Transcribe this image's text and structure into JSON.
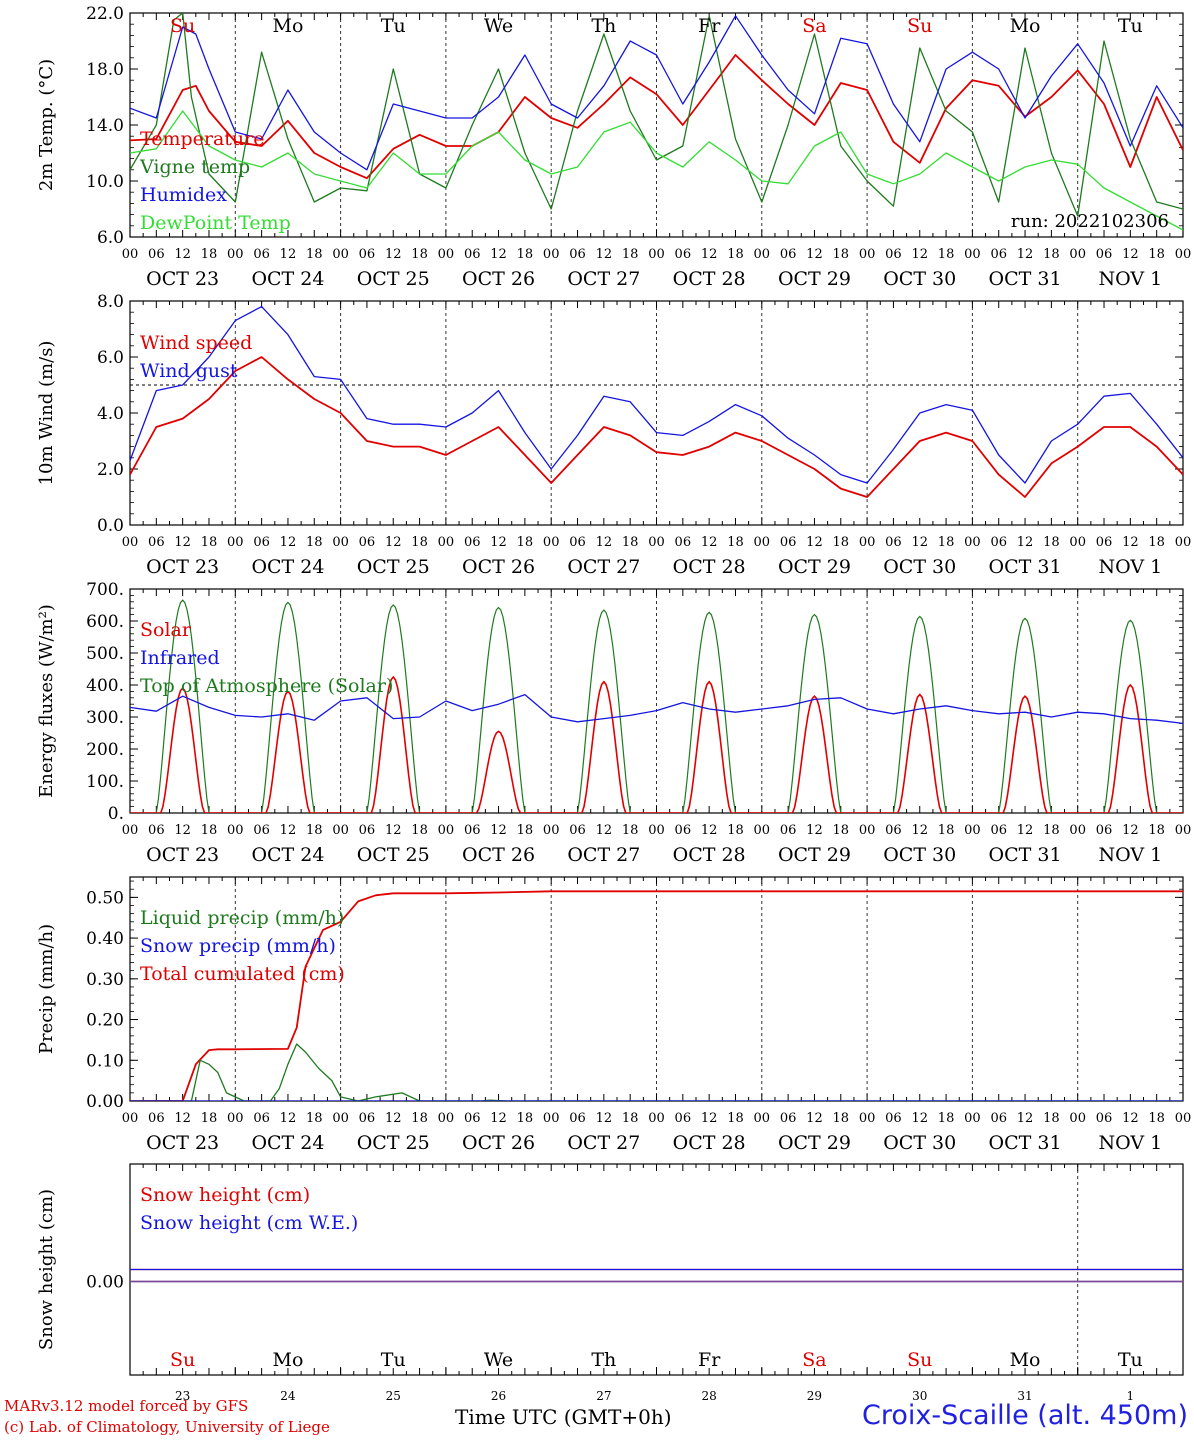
{
  "footer": {
    "model": "MARv3.12 model forced by GFS",
    "lab": "(c) Lab. of Climatology, University of Liege",
    "xlabel": "Time UTC (GMT+0h)",
    "station": "Croix-Scaille (alt. 450m)"
  },
  "colors": {
    "red": "#e00000",
    "dgreen": "#1f7a1f",
    "blue": "#1515e0",
    "lgreen": "#33dd33",
    "purple": "#7a4a9a"
  },
  "days": [
    "Su",
    "Mo",
    "Tu",
    "We",
    "Th",
    "Fr",
    "Sa",
    "Su",
    "Mo",
    "Tu"
  ],
  "day_colors": [
    "#e00000",
    "#000",
    "#000",
    "#000",
    "#000",
    "#000",
    "#e00000",
    "#e00000",
    "#000",
    "#000"
  ],
  "date_labels": [
    "OCT 23",
    "OCT 24",
    "OCT 25",
    "OCT 26",
    "OCT 27",
    "OCT 28",
    "OCT 29",
    "OCT 30",
    "OCT 31",
    "NOV  1"
  ],
  "day_numbers": [
    "23",
    "24",
    "25",
    "26",
    "27",
    "28",
    "29",
    "30",
    "31",
    "1"
  ],
  "hour_labels": [
    "00",
    "06",
    "12",
    "18"
  ],
  "chart_data": [
    {
      "type": "line",
      "name": "temperature",
      "ylabel": "2m Temp. (°C)",
      "ylim": [
        6,
        22
      ],
      "yticks": [
        "6.0",
        "10.0",
        "14.0",
        "18.0",
        "22.0"
      ],
      "annotation": "run: 2022102306",
      "x_unit": "hours from 2022-10-23 00 UTC",
      "legend": [
        {
          "label": "Temperature",
          "color": "#e00000"
        },
        {
          "label": "Vigne temp",
          "color": "#1f7a1f"
        },
        {
          "label": "Humidex",
          "color": "#1515e0"
        },
        {
          "label": "DewPoint Temp",
          "color": "#33dd33"
        }
      ],
      "series": [
        {
          "name": "Temperature",
          "color": "#e00000",
          "x": [
            0,
            6,
            12,
            15,
            18,
            24,
            30,
            36,
            42,
            48,
            54,
            60,
            66,
            72,
            78,
            84,
            90,
            96,
            102,
            108,
            114,
            120,
            126,
            132,
            138,
            144,
            150,
            156,
            162,
            168,
            174,
            180,
            186,
            192,
            198,
            204,
            210,
            216,
            222,
            228,
            234,
            240
          ],
          "y": [
            12.9,
            13.0,
            16.5,
            16.8,
            15.0,
            12.8,
            12.5,
            14.3,
            12.0,
            11.0,
            10.2,
            12.3,
            13.3,
            12.5,
            12.5,
            13.5,
            16.0,
            14.5,
            13.8,
            15.5,
            17.4,
            16.2,
            14.0,
            16.5,
            19.0,
            17.2,
            15.5,
            14.0,
            17.0,
            16.5,
            12.8,
            11.3,
            15.2,
            17.2,
            16.8,
            14.6,
            16.0,
            17.9,
            15.5,
            11.0,
            16.0,
            12.2
          ]
        },
        {
          "name": "Vigne temp",
          "color": "#1f7a1f",
          "x": [
            0,
            6,
            10,
            12,
            14,
            18,
            24,
            30,
            36,
            42,
            48,
            54,
            60,
            66,
            72,
            78,
            84,
            90,
            96,
            102,
            108,
            114,
            120,
            126,
            132,
            138,
            144,
            150,
            156,
            162,
            168,
            174,
            180,
            186,
            192,
            198,
            204,
            210,
            216,
            222,
            228,
            234,
            240
          ],
          "y": [
            10.8,
            14.0,
            21.5,
            22.0,
            16.0,
            10.5,
            8.5,
            19.2,
            13.0,
            8.5,
            9.5,
            9.3,
            18.0,
            10.5,
            9.5,
            14.0,
            18.0,
            12.0,
            8.0,
            15.0,
            20.5,
            15.0,
            11.5,
            12.5,
            21.8,
            13.0,
            8.5,
            14.0,
            20.5,
            12.5,
            10.0,
            8.2,
            19.5,
            15.0,
            13.5,
            8.5,
            19.5,
            12.0,
            7.5,
            20.0,
            13.0,
            8.5,
            8.0
          ]
        },
        {
          "name": "Humidex",
          "color": "#1515e0",
          "x": [
            0,
            6,
            12,
            15,
            18,
            24,
            30,
            36,
            42,
            48,
            54,
            60,
            66,
            72,
            78,
            84,
            90,
            96,
            102,
            108,
            114,
            120,
            126,
            132,
            138,
            144,
            150,
            156,
            162,
            168,
            174,
            180,
            186,
            192,
            198,
            204,
            210,
            216,
            222,
            228,
            234,
            240
          ],
          "y": [
            15.2,
            14.5,
            21.0,
            20.5,
            18.0,
            13.5,
            13.0,
            16.5,
            13.5,
            12.0,
            10.8,
            15.5,
            15.0,
            14.5,
            14.5,
            16.0,
            19.0,
            15.5,
            14.5,
            16.8,
            20.0,
            19.0,
            15.5,
            18.5,
            21.8,
            19.0,
            16.5,
            14.8,
            20.2,
            19.8,
            15.5,
            12.8,
            18.0,
            19.2,
            18.0,
            14.5,
            17.5,
            19.8,
            17.0,
            12.5,
            16.8,
            13.8
          ]
        },
        {
          "name": "DewPoint Temp",
          "color": "#33dd33",
          "x": [
            0,
            6,
            12,
            18,
            24,
            30,
            36,
            42,
            48,
            54,
            60,
            66,
            72,
            78,
            84,
            90,
            96,
            102,
            108,
            114,
            120,
            126,
            132,
            138,
            144,
            150,
            156,
            162,
            168,
            174,
            180,
            186,
            192,
            198,
            204,
            210,
            216,
            222,
            228,
            234,
            240
          ],
          "y": [
            12.0,
            12.3,
            15.0,
            12.5,
            11.5,
            11.0,
            12.0,
            10.5,
            10.0,
            9.5,
            12.0,
            10.5,
            10.5,
            12.5,
            13.5,
            11.5,
            10.5,
            11.0,
            13.5,
            14.2,
            12.0,
            11.0,
            12.8,
            11.5,
            10.0,
            9.8,
            12.5,
            13.5,
            10.5,
            9.8,
            10.5,
            12.0,
            11.0,
            10.0,
            11.0,
            11.5,
            11.2,
            9.5,
            8.5,
            7.5,
            6.5
          ]
        }
      ]
    },
    {
      "type": "line",
      "name": "wind",
      "ylabel": "10m Wind (m/s)",
      "ylim": [
        0,
        8
      ],
      "yticks": [
        "0.0",
        "2.0",
        "4.0",
        "6.0",
        "8.0"
      ],
      "reference_line": 5,
      "legend": [
        {
          "label": "Wind speed",
          "color": "#e00000"
        },
        {
          "label": "Wind gust",
          "color": "#1515e0"
        }
      ],
      "series": [
        {
          "name": "Wind speed",
          "color": "#e00000",
          "x": [
            0,
            6,
            12,
            18,
            24,
            30,
            36,
            42,
            48,
            54,
            60,
            66,
            72,
            78,
            84,
            90,
            96,
            102,
            108,
            114,
            120,
            126,
            132,
            138,
            144,
            150,
            156,
            162,
            168,
            174,
            180,
            186,
            192,
            198,
            204,
            210,
            216,
            222,
            228,
            234,
            240
          ],
          "y": [
            1.8,
            3.5,
            3.8,
            4.5,
            5.5,
            6.0,
            5.2,
            4.5,
            4.0,
            3.0,
            2.8,
            2.8,
            2.5,
            3.0,
            3.5,
            2.5,
            1.5,
            2.5,
            3.5,
            3.2,
            2.6,
            2.5,
            2.8,
            3.3,
            3.0,
            2.5,
            2.0,
            1.3,
            1.0,
            2.0,
            3.0,
            3.3,
            3.0,
            1.8,
            1.0,
            2.2,
            2.8,
            3.5,
            3.5,
            2.8,
            1.8
          ]
        },
        {
          "name": "Wind gust",
          "color": "#1515e0",
          "x": [
            0,
            6,
            12,
            18,
            24,
            30,
            36,
            42,
            48,
            54,
            60,
            66,
            72,
            78,
            84,
            90,
            96,
            102,
            108,
            114,
            120,
            126,
            132,
            138,
            144,
            150,
            156,
            162,
            168,
            174,
            180,
            186,
            192,
            198,
            204,
            210,
            216,
            222,
            228,
            234,
            240
          ],
          "y": [
            2.3,
            4.8,
            5.0,
            6.0,
            7.3,
            7.8,
            6.8,
            5.3,
            5.2,
            3.8,
            3.6,
            3.6,
            3.5,
            4.0,
            4.8,
            3.3,
            2.0,
            3.2,
            4.6,
            4.4,
            3.3,
            3.2,
            3.7,
            4.3,
            3.9,
            3.1,
            2.5,
            1.8,
            1.5,
            2.7,
            4.0,
            4.3,
            4.1,
            2.5,
            1.5,
            3.0,
            3.6,
            4.6,
            4.7,
            3.6,
            2.4
          ]
        }
      ]
    },
    {
      "type": "line",
      "name": "energy",
      "ylabel": "Energy fluxes (W/m²)",
      "ylim": [
        0,
        700
      ],
      "yticks": [
        "0.",
        "100.",
        "200.",
        "300.",
        "400.",
        "500.",
        "600.",
        "700."
      ],
      "legend": [
        {
          "label": "Solar",
          "color": "#e00000"
        },
        {
          "label": "Infrared",
          "color": "#1515e0"
        },
        {
          "label": "Top of Atmosphere (Solar)",
          "color": "#1f7a1f"
        }
      ],
      "solar_peaks": [
        390,
        380,
        425,
        255,
        410,
        410,
        365,
        370,
        365,
        400
      ],
      "toa_peaks": [
        665,
        658,
        650,
        642,
        634,
        627,
        620,
        614,
        608,
        602
      ],
      "series": [
        {
          "name": "Infrared",
          "color": "#1515e0",
          "x": [
            0,
            6,
            12,
            18,
            24,
            30,
            36,
            42,
            48,
            54,
            60,
            66,
            72,
            78,
            84,
            90,
            96,
            102,
            108,
            114,
            120,
            126,
            132,
            138,
            144,
            150,
            156,
            162,
            168,
            174,
            180,
            186,
            192,
            198,
            204,
            210,
            216,
            222,
            228,
            234,
            240
          ],
          "y": [
            330,
            318,
            365,
            330,
            305,
            300,
            310,
            290,
            350,
            360,
            295,
            300,
            350,
            320,
            340,
            370,
            300,
            285,
            295,
            305,
            320,
            345,
            325,
            315,
            325,
            335,
            355,
            360,
            325,
            310,
            325,
            335,
            320,
            310,
            315,
            300,
            315,
            310,
            295,
            290,
            280
          ]
        }
      ]
    },
    {
      "type": "line",
      "name": "precip",
      "ylabel": "Precip (mm/h)",
      "ylim": [
        0,
        0.55
      ],
      "yticks": [
        "0.00",
        "0.10",
        "0.20",
        "0.30",
        "0.40",
        "0.50"
      ],
      "legend": [
        {
          "label": "Liquid precip (mm/h)",
          "color": "#1f7a1f"
        },
        {
          "label": "Snow precip (mm/h)",
          "color": "#1515e0"
        },
        {
          "label": "Total cumulated (cm)",
          "color": "#e00000"
        }
      ],
      "series": [
        {
          "name": "Total cumulated (cm)",
          "color": "#e00000",
          "x": [
            0,
            12,
            15,
            18,
            20,
            24,
            36,
            38,
            40,
            44,
            48,
            52,
            56,
            60,
            72,
            84,
            96,
            240
          ],
          "y": [
            0,
            0,
            0.09,
            0.125,
            0.127,
            0.127,
            0.128,
            0.18,
            0.33,
            0.42,
            0.44,
            0.49,
            0.505,
            0.51,
            0.51,
            0.512,
            0.515,
            0.515
          ]
        },
        {
          "name": "Liquid precip (mm/h)",
          "color": "#1f7a1f",
          "x": [
            0,
            14,
            16,
            18,
            20,
            22,
            26,
            32,
            34,
            36,
            38,
            40,
            43,
            46,
            48,
            52,
            56,
            62,
            66,
            70,
            80,
            82,
            86,
            240
          ],
          "y": [
            0,
            0,
            0.1,
            0.09,
            0.07,
            0.02,
            0,
            0,
            0.03,
            0.09,
            0.14,
            0.12,
            0.08,
            0.05,
            0.01,
            0,
            0.01,
            0.02,
            0.0,
            0,
            0,
            0.002,
            0,
            0
          ]
        },
        {
          "name": "Snow precip (mm/h)",
          "color": "#1515e0",
          "x": [
            0,
            240
          ],
          "y": [
            0,
            0
          ]
        }
      ]
    },
    {
      "type": "line",
      "name": "snow",
      "ylabel": "Snow height (cm)",
      "yticks": [
        "0.00"
      ],
      "legend": [
        {
          "label": "Snow height (cm)",
          "color": "#e00000"
        },
        {
          "label": "Snow height (cm W.E.)",
          "color": "#1515e0"
        }
      ],
      "series": [
        {
          "name": "Snow height (cm)",
          "color": "#e00000",
          "x": [
            0,
            240
          ],
          "y": [
            0,
            0
          ]
        },
        {
          "name": "Snow height (cm W.E.)",
          "color": "#1515e0",
          "x": [
            0,
            240
          ],
          "y": [
            0,
            0
          ]
        }
      ]
    }
  ]
}
